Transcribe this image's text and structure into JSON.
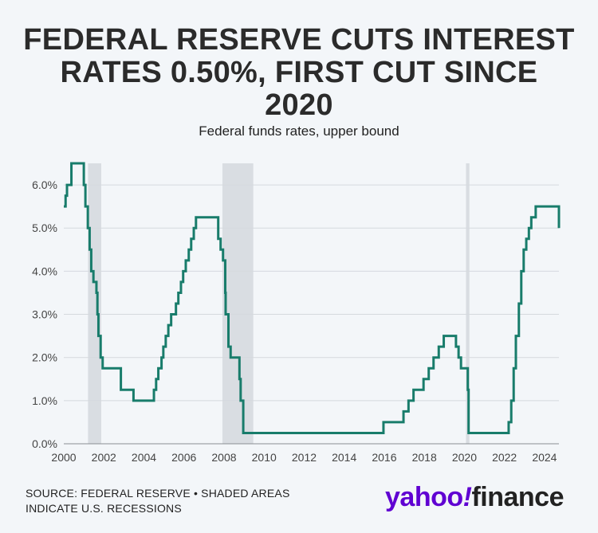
{
  "header": {
    "title_line1": "FEDERAL RESERVE CUTS INTEREST",
    "title_line2": "RATES 0.50%, FIRST CUT SINCE",
    "title_line3": "2020",
    "subtitle": "Federal funds rates, upper bound"
  },
  "footer": {
    "source_line1": "SOURCE: FEDERAL RESERVE • SHADED AREAS",
    "source_line2": "INDICATE U.S. RECESSIONS"
  },
  "logo": {
    "yahoo": "yahoo",
    "bang": "!",
    "finance": "finance"
  },
  "colors": {
    "line": "#187c6b",
    "recession": "#d9dde2",
    "grid": "#d5d9de",
    "background": "#f3f6f9"
  },
  "chart_data": {
    "type": "line",
    "title": "FEDERAL RESERVE CUTS INTEREST RATES 0.50%, FIRST CUT SINCE 2020",
    "subtitle": "Federal funds rates, upper bound",
    "xlim": [
      2000,
      2024.72
    ],
    "ylim": [
      0,
      6.5
    ],
    "grid": "horizontal",
    "x_ticks": [
      "2000",
      "2002",
      "2004",
      "2006",
      "2008",
      "2010",
      "2012",
      "2014",
      "2016",
      "2018",
      "2020",
      "2022",
      "2024"
    ],
    "y_ticks": [
      "0.0%",
      "1.0%",
      "2.0%",
      "3.0%",
      "4.0%",
      "5.0%",
      "6.0%"
    ],
    "recessions": [
      [
        2001.21,
        2001.87
      ],
      [
        2007.92,
        2009.46
      ],
      [
        2020.08,
        2020.25
      ]
    ],
    "series": [
      {
        "points": [
          [
            2000.0,
            5.5
          ],
          [
            2000.09,
            5.75
          ],
          [
            2000.16,
            6.0
          ],
          [
            2000.38,
            6.5
          ],
          [
            2001.0,
            6.0
          ],
          [
            2001.08,
            5.5
          ],
          [
            2001.2,
            5.0
          ],
          [
            2001.29,
            4.5
          ],
          [
            2001.37,
            4.0
          ],
          [
            2001.48,
            3.75
          ],
          [
            2001.63,
            3.5
          ],
          [
            2001.68,
            3.0
          ],
          [
            2001.73,
            2.5
          ],
          [
            2001.84,
            2.0
          ],
          [
            2001.94,
            1.75
          ],
          [
            2002.85,
            1.25
          ],
          [
            2003.48,
            1.0
          ],
          [
            2004.5,
            1.25
          ],
          [
            2004.61,
            1.5
          ],
          [
            2004.72,
            1.75
          ],
          [
            2004.88,
            2.0
          ],
          [
            2004.97,
            2.25
          ],
          [
            2005.09,
            2.5
          ],
          [
            2005.22,
            2.75
          ],
          [
            2005.36,
            3.0
          ],
          [
            2005.6,
            3.25
          ],
          [
            2005.72,
            3.5
          ],
          [
            2005.85,
            3.75
          ],
          [
            2005.96,
            4.0
          ],
          [
            2006.09,
            4.25
          ],
          [
            2006.24,
            4.5
          ],
          [
            2006.36,
            4.75
          ],
          [
            2006.49,
            5.0
          ],
          [
            2006.6,
            5.25
          ],
          [
            2007.71,
            4.75
          ],
          [
            2007.83,
            4.5
          ],
          [
            2007.95,
            4.25
          ],
          [
            2008.06,
            3.5
          ],
          [
            2008.08,
            3.0
          ],
          [
            2008.22,
            2.25
          ],
          [
            2008.33,
            2.0
          ],
          [
            2008.77,
            1.5
          ],
          [
            2008.83,
            1.0
          ],
          [
            2008.96,
            0.25
          ],
          [
            2015.96,
            0.5
          ],
          [
            2016.96,
            0.75
          ],
          [
            2017.21,
            1.0
          ],
          [
            2017.46,
            1.25
          ],
          [
            2017.96,
            1.5
          ],
          [
            2018.22,
            1.75
          ],
          [
            2018.46,
            2.0
          ],
          [
            2018.72,
            2.25
          ],
          [
            2018.97,
            2.5
          ],
          [
            2019.58,
            2.25
          ],
          [
            2019.71,
            2.0
          ],
          [
            2019.83,
            1.75
          ],
          [
            2020.17,
            1.25
          ],
          [
            2020.21,
            0.25
          ],
          [
            2022.21,
            0.5
          ],
          [
            2022.34,
            1.0
          ],
          [
            2022.46,
            1.75
          ],
          [
            2022.57,
            2.5
          ],
          [
            2022.72,
            3.25
          ],
          [
            2022.84,
            4.0
          ],
          [
            2022.96,
            4.5
          ],
          [
            2023.09,
            4.75
          ],
          [
            2023.22,
            5.0
          ],
          [
            2023.34,
            5.25
          ],
          [
            2023.56,
            5.5
          ],
          [
            2024.72,
            5.0
          ]
        ]
      }
    ]
  }
}
